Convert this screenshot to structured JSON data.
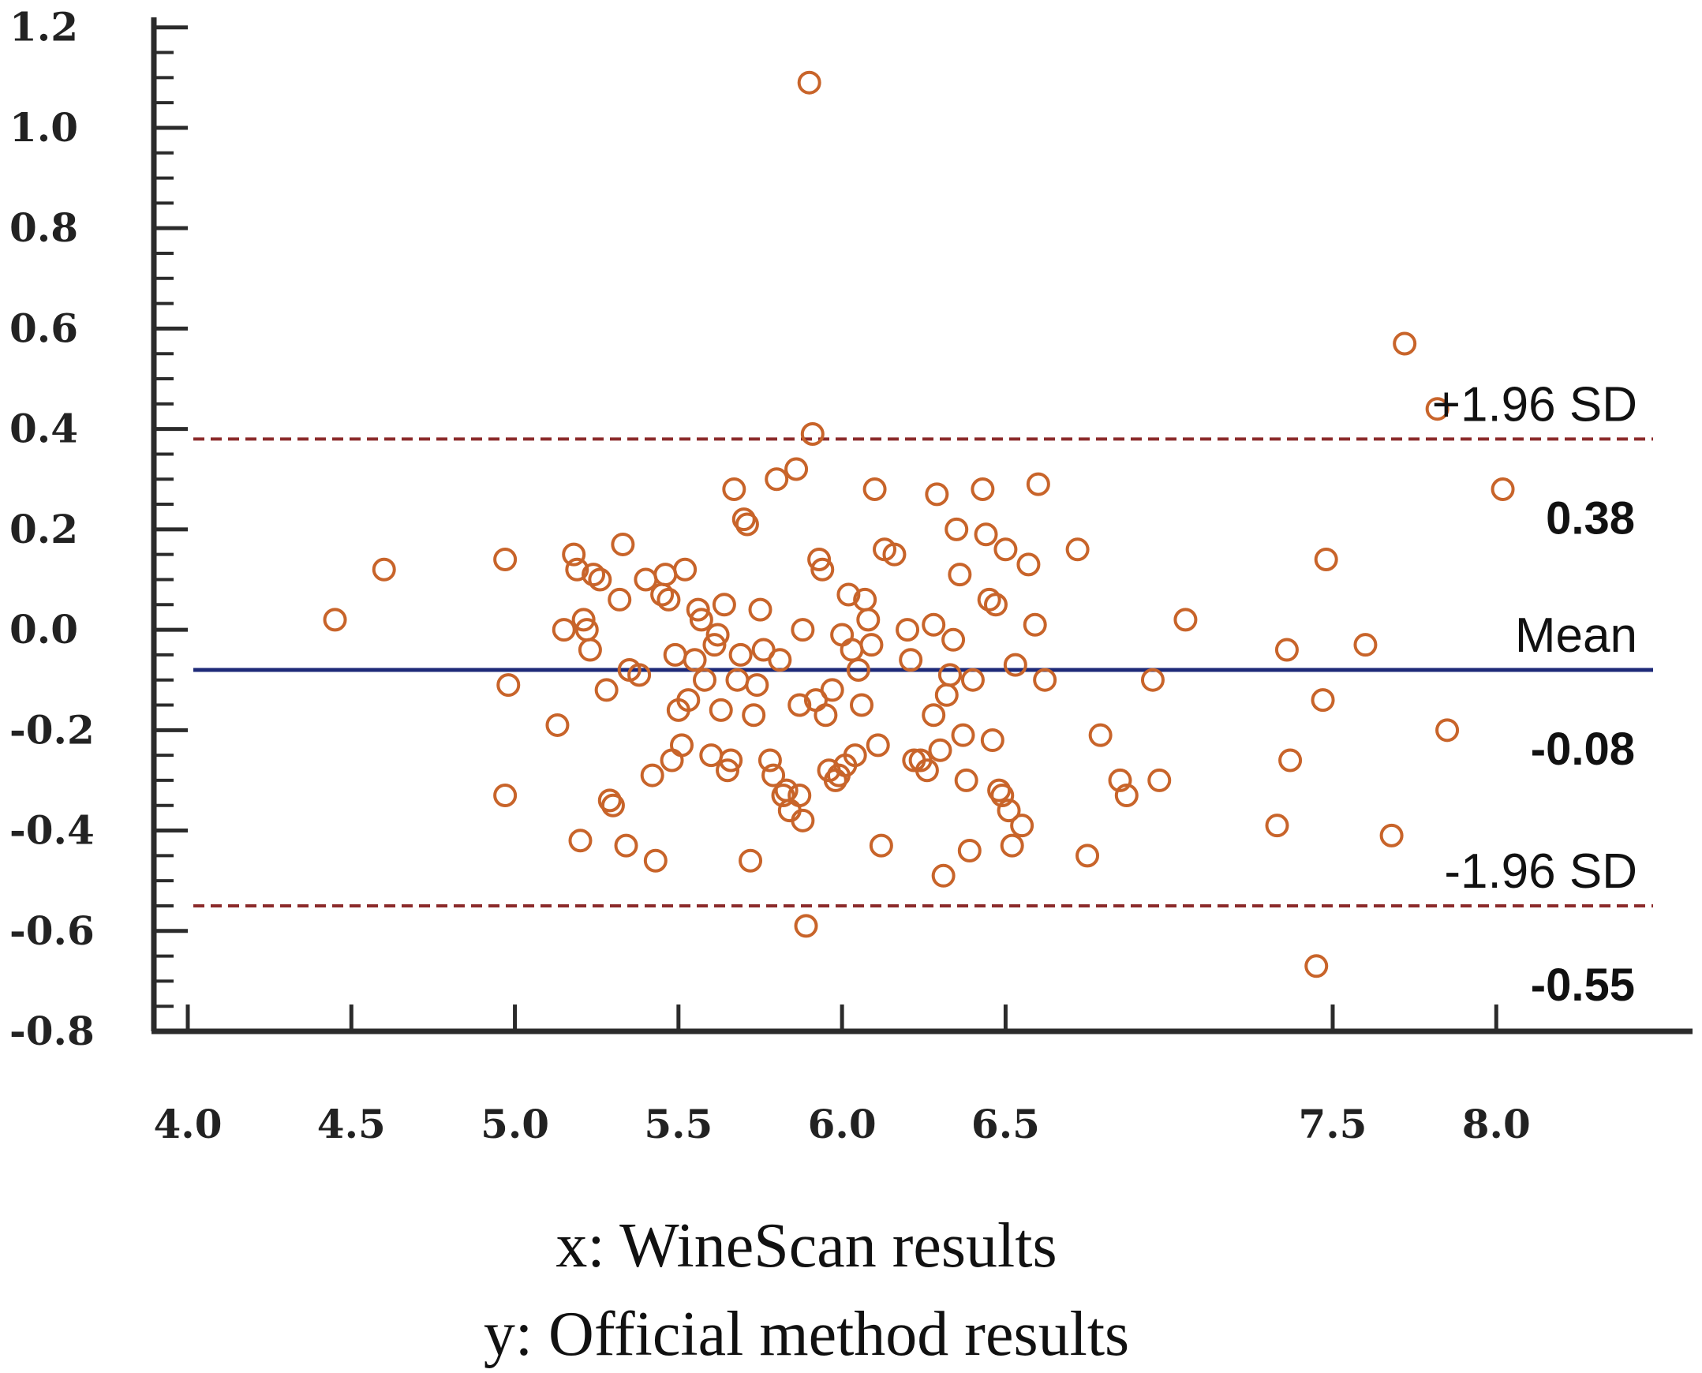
{
  "chart_data": {
    "type": "scatter",
    "xlim": [
      4.0,
      8.6
    ],
    "ylim": [
      -0.8,
      1.22
    ],
    "x_ticks": [
      4.0,
      4.5,
      5.0,
      5.5,
      6.0,
      6.5,
      7.5,
      8.0
    ],
    "x_tick_labels": [
      "4.0",
      "4.5",
      "5.0",
      "5.5",
      "6.0",
      "6.5",
      "7.5",
      "8.0"
    ],
    "y_ticks": [
      1.2,
      1.0,
      0.8,
      0.6,
      0.4,
      0.2,
      0.0,
      -0.2,
      -0.4,
      -0.6,
      -0.8
    ],
    "y_tick_labels": [
      "1.2",
      "1.0",
      "0.8",
      "0.6",
      "0.4",
      "0.2",
      "0.0",
      "-0.2",
      "-0.4",
      "-0.6",
      "-0.8"
    ],
    "reference_lines": [
      {
        "name": "upper-limit",
        "y": 0.38,
        "label": "+1.96 SD",
        "value_label": "0.38",
        "style": "dashed",
        "color": "#8b2a2a"
      },
      {
        "name": "mean",
        "y": -0.08,
        "label": "Mean",
        "value_label": "-0.08",
        "style": "solid",
        "color": "#1e2a78"
      },
      {
        "name": "lower-limit",
        "y": -0.55,
        "label": "-1.96 SD",
        "value_label": "-0.55",
        "style": "dashed",
        "color": "#8b2a2a"
      }
    ],
    "point_color": "#c8642a",
    "points": [
      [
        4.45,
        0.02
      ],
      [
        4.6,
        0.12
      ],
      [
        4.97,
        0.14
      ],
      [
        4.98,
        -0.11
      ],
      [
        4.97,
        -0.33
      ],
      [
        5.13,
        -0.19
      ],
      [
        5.15,
        0.0
      ],
      [
        5.18,
        0.15
      ],
      [
        5.19,
        0.12
      ],
      [
        5.2,
        -0.42
      ],
      [
        5.21,
        0.02
      ],
      [
        5.22,
        0.0
      ],
      [
        5.23,
        -0.04
      ],
      [
        5.24,
        0.11
      ],
      [
        5.26,
        0.1
      ],
      [
        5.28,
        -0.12
      ],
      [
        5.29,
        -0.34
      ],
      [
        5.3,
        -0.35
      ],
      [
        5.32,
        0.06
      ],
      [
        5.33,
        0.17
      ],
      [
        5.34,
        -0.43
      ],
      [
        5.35,
        -0.08
      ],
      [
        5.38,
        -0.09
      ],
      [
        5.4,
        0.1
      ],
      [
        5.42,
        -0.29
      ],
      [
        5.43,
        -0.46
      ],
      [
        5.45,
        0.07
      ],
      [
        5.46,
        0.11
      ],
      [
        5.47,
        0.06
      ],
      [
        5.48,
        -0.26
      ],
      [
        5.49,
        -0.05
      ],
      [
        5.5,
        -0.16
      ],
      [
        5.51,
        -0.23
      ],
      [
        5.52,
        0.12
      ],
      [
        5.53,
        -0.14
      ],
      [
        5.55,
        -0.06
      ],
      [
        5.56,
        0.04
      ],
      [
        5.57,
        0.02
      ],
      [
        5.58,
        -0.1
      ],
      [
        5.6,
        -0.25
      ],
      [
        5.61,
        -0.03
      ],
      [
        5.62,
        -0.01
      ],
      [
        5.63,
        -0.16
      ],
      [
        5.64,
        0.05
      ],
      [
        5.65,
        -0.28
      ],
      [
        5.66,
        -0.26
      ],
      [
        5.67,
        0.28
      ],
      [
        5.68,
        -0.1
      ],
      [
        5.69,
        -0.05
      ],
      [
        5.7,
        0.22
      ],
      [
        5.71,
        0.21
      ],
      [
        5.72,
        -0.46
      ],
      [
        5.73,
        -0.17
      ],
      [
        5.74,
        -0.11
      ],
      [
        5.75,
        0.04
      ],
      [
        5.76,
        -0.04
      ],
      [
        5.78,
        -0.26
      ],
      [
        5.79,
        -0.29
      ],
      [
        5.8,
        0.3
      ],
      [
        5.81,
        -0.06
      ],
      [
        5.82,
        -0.33
      ],
      [
        5.83,
        -0.32
      ],
      [
        5.84,
        -0.36
      ],
      [
        5.86,
        0.32
      ],
      [
        5.87,
        -0.33
      ],
      [
        5.88,
        -0.38
      ],
      [
        5.88,
        0.0
      ],
      [
        5.89,
        -0.59
      ],
      [
        5.87,
        -0.15
      ],
      [
        5.9,
        1.09
      ],
      [
        5.91,
        0.39
      ],
      [
        5.92,
        -0.14
      ],
      [
        5.93,
        0.14
      ],
      [
        5.94,
        0.12
      ],
      [
        5.95,
        -0.17
      ],
      [
        5.96,
        -0.28
      ],
      [
        5.97,
        -0.12
      ],
      [
        5.98,
        -0.3
      ],
      [
        5.99,
        -0.29
      ],
      [
        6.0,
        -0.01
      ],
      [
        6.01,
        -0.27
      ],
      [
        6.02,
        0.07
      ],
      [
        6.03,
        -0.04
      ],
      [
        6.04,
        -0.25
      ],
      [
        6.05,
        -0.08
      ],
      [
        6.06,
        -0.15
      ],
      [
        6.07,
        0.06
      ],
      [
        6.08,
        0.02
      ],
      [
        6.09,
        -0.03
      ],
      [
        6.1,
        0.28
      ],
      [
        6.11,
        -0.23
      ],
      [
        6.12,
        -0.43
      ],
      [
        6.13,
        0.16
      ],
      [
        6.16,
        0.15
      ],
      [
        6.2,
        0.0
      ],
      [
        6.21,
        -0.06
      ],
      [
        6.22,
        -0.26
      ],
      [
        6.24,
        -0.26
      ],
      [
        6.26,
        -0.28
      ],
      [
        6.28,
        -0.17
      ],
      [
        6.28,
        0.01
      ],
      [
        6.29,
        0.27
      ],
      [
        6.3,
        -0.24
      ],
      [
        6.31,
        -0.49
      ],
      [
        6.32,
        -0.13
      ],
      [
        6.33,
        -0.09
      ],
      [
        6.34,
        -0.02
      ],
      [
        6.35,
        0.2
      ],
      [
        6.36,
        0.11
      ],
      [
        6.37,
        -0.21
      ],
      [
        6.38,
        -0.3
      ],
      [
        6.39,
        -0.44
      ],
      [
        6.4,
        -0.1
      ],
      [
        6.43,
        0.28
      ],
      [
        6.44,
        0.19
      ],
      [
        6.45,
        0.06
      ],
      [
        6.46,
        -0.22
      ],
      [
        6.47,
        0.05
      ],
      [
        6.48,
        -0.32
      ],
      [
        6.49,
        -0.33
      ],
      [
        6.5,
        0.16
      ],
      [
        6.51,
        -0.36
      ],
      [
        6.52,
        -0.43
      ],
      [
        6.53,
        -0.07
      ],
      [
        6.55,
        -0.39
      ],
      [
        6.57,
        0.13
      ],
      [
        6.59,
        0.01
      ],
      [
        6.6,
        0.29
      ],
      [
        6.62,
        -0.1
      ],
      [
        6.72,
        0.16
      ],
      [
        6.75,
        -0.45
      ],
      [
        6.79,
        -0.21
      ],
      [
        6.85,
        -0.3
      ],
      [
        6.87,
        -0.33
      ],
      [
        6.95,
        -0.1
      ],
      [
        6.97,
        -0.3
      ],
      [
        7.05,
        0.02
      ],
      [
        7.33,
        -0.39
      ],
      [
        7.36,
        -0.04
      ],
      [
        7.37,
        -0.26
      ],
      [
        7.45,
        -0.67
      ],
      [
        7.47,
        -0.14
      ],
      [
        7.48,
        0.14
      ],
      [
        7.6,
        -0.03
      ],
      [
        7.68,
        -0.41
      ],
      [
        7.72,
        0.57
      ],
      [
        7.82,
        0.44
      ],
      [
        7.85,
        -0.2
      ],
      [
        8.02,
        0.28
      ]
    ],
    "caption_lines": [
      "x: WineScan results",
      "y: Official method results"
    ]
  }
}
